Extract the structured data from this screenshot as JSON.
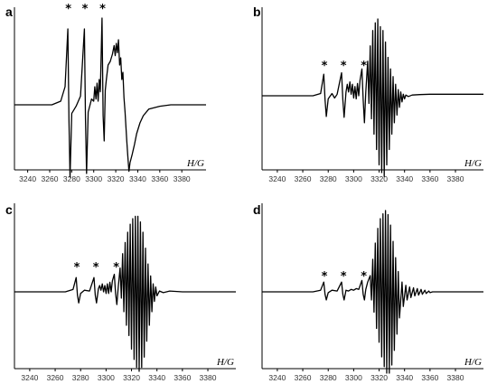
{
  "chart_data": [
    {
      "type": "line",
      "panel_label": "a",
      "xlabel": "H/G",
      "xticks": [
        3240,
        3260,
        3280,
        3300,
        3320,
        3340,
        3360,
        3380
      ],
      "xlim": [
        3228,
        3402
      ],
      "grid": false,
      "markers": [
        {
          "text": "*",
          "x": 3277
        },
        {
          "text": "*",
          "x": 3292
        },
        {
          "text": "*",
          "x": 3308
        }
      ],
      "series": [
        {
          "x": [
            3228,
            3262,
            3270,
            3274,
            3276.5,
            3277.5,
            3278.5,
            3280,
            3284,
            3288,
            3291.5,
            3292.5,
            3293.5,
            3295,
            3298,
            3300,
            3301,
            3302,
            3303,
            3304,
            3305,
            3306,
            3307.5,
            3308.5,
            3309.5,
            3310.5,
            3311.5,
            3313,
            3315,
            3317,
            3318.5,
            3319.5,
            3320.5,
            3321.5,
            3322.5,
            3323.5,
            3324.5,
            3325.5,
            3326.5,
            3327.5,
            3328.5,
            3330,
            3331,
            3332,
            3333,
            3335,
            3337,
            3339,
            3342,
            3345,
            3350,
            3360,
            3370,
            3380,
            3402
          ],
          "y": [
            0,
            0,
            0.05,
            0.25,
            1.05,
            -0.2,
            -1.0,
            -0.12,
            -0.02,
            0.12,
            1.05,
            -0.2,
            -0.95,
            -0.1,
            0.08,
            0.05,
            0.25,
            0.08,
            0.3,
            0.05,
            0.35,
            0.18,
            1.2,
            -0.15,
            -0.5,
            0.2,
            0.35,
            0.55,
            0.6,
            0.7,
            0.82,
            0.68,
            0.85,
            0.72,
            0.9,
            0.55,
            0.65,
            0.35,
            0.45,
            0.1,
            -0.1,
            -0.5,
            -0.72,
            -0.92,
            -0.8,
            -0.68,
            -0.55,
            -0.4,
            -0.25,
            -0.15,
            -0.06,
            -0.02,
            0,
            0,
            0
          ]
        }
      ]
    },
    {
      "type": "line",
      "panel_label": "b",
      "xlabel": "H/G",
      "xticks": [
        3240,
        3260,
        3280,
        3300,
        3320,
        3340,
        3360,
        3380
      ],
      "xlim": [
        3228,
        3402
      ],
      "grid": false,
      "markers": [
        {
          "text": "*",
          "x": 3277
        },
        {
          "text": "*",
          "x": 3292
        },
        {
          "text": "*",
          "x": 3308
        }
      ],
      "series": [
        {
          "x": [
            3228,
            3268,
            3274,
            3276.5,
            3277.5,
            3278.5,
            3280,
            3283,
            3285,
            3287,
            3290.5,
            3291.5,
            3292.5,
            3294,
            3295,
            3296,
            3297,
            3298,
            3299,
            3300,
            3301,
            3302,
            3303,
            3304,
            3305,
            3306.5,
            3307.5,
            3308.5,
            3309.5,
            3311,
            3312,
            3313,
            3314,
            3315,
            3316,
            3317,
            3318,
            3319,
            3320,
            3321,
            3322,
            3323,
            3324,
            3325,
            3326,
            3327,
            3328,
            3329,
            3330,
            3331,
            3332,
            3333,
            3334,
            3335,
            3336,
            3337,
            3338,
            3339,
            3340,
            3341,
            3343,
            3346,
            3352,
            3360,
            3380,
            3402
          ],
          "y": [
            0,
            0,
            0.03,
            0.28,
            -0.05,
            -0.27,
            -0.04,
            0.03,
            -0.03,
            0.02,
            0.3,
            -0.05,
            -0.28,
            0.05,
            0.15,
            0.05,
            0.18,
            0.02,
            0.15,
            -0.03,
            0.12,
            -0.04,
            0.16,
            0.0,
            0.2,
            0.35,
            -0.05,
            -0.35,
            0.05,
            0.45,
            -0.1,
            0.65,
            -0.3,
            0.85,
            -0.5,
            0.95,
            -0.7,
            1.0,
            -0.9,
            0.9,
            -1.0,
            0.85,
            -1.05,
            0.7,
            -0.9,
            0.5,
            -0.7,
            0.35,
            -0.5,
            0.25,
            -0.35,
            0.15,
            -0.25,
            0.08,
            -0.15,
            0.05,
            -0.08,
            0.02,
            -0.04,
            0.01,
            -0.01,
            0.01,
            0.015,
            0.02,
            0.02,
            0.02
          ]
        }
      ]
    },
    {
      "type": "line",
      "panel_label": "c",
      "xlabel": "H/G",
      "xticks": [
        3240,
        3260,
        3280,
        3300,
        3320,
        3340,
        3360,
        3380
      ],
      "xlim": [
        3228,
        3402
      ],
      "grid": false,
      "markers": [
        {
          "text": "*",
          "x": 3277
        },
        {
          "text": "*",
          "x": 3292
        },
        {
          "text": "*",
          "x": 3308
        }
      ],
      "series": [
        {
          "x": [
            3228,
            3268,
            3274,
            3276.5,
            3277.5,
            3278.5,
            3280,
            3283,
            3287,
            3290.5,
            3291.5,
            3292.5,
            3294,
            3295,
            3296,
            3297,
            3298,
            3299,
            3300,
            3301,
            3302,
            3303,
            3304,
            3305,
            3306.5,
            3307.5,
            3308.5,
            3309.5,
            3311,
            3312,
            3313,
            3314,
            3315,
            3316,
            3317,
            3318,
            3319,
            3320,
            3321,
            3322,
            3323,
            3324,
            3325,
            3326,
            3327,
            3328,
            3329,
            3330,
            3331,
            3332,
            3333,
            3334,
            3335,
            3336,
            3337,
            3338,
            3339,
            3340,
            3342,
            3345,
            3350,
            3360,
            3380,
            3402
          ],
          "y": [
            0,
            0,
            0.03,
            0.18,
            -0.04,
            -0.14,
            -0.02,
            0.02,
            0.01,
            0.18,
            -0.04,
            -0.14,
            0.04,
            0.08,
            0.02,
            0.1,
            0.0,
            0.08,
            -0.02,
            0.1,
            -0.02,
            0.12,
            0.0,
            0.14,
            0.22,
            -0.02,
            -0.16,
            0.05,
            0.3,
            -0.08,
            0.48,
            -0.25,
            0.62,
            -0.42,
            0.75,
            -0.55,
            0.85,
            -0.72,
            0.92,
            -0.85,
            0.95,
            -0.95,
            0.95,
            -1.0,
            0.88,
            -0.95,
            0.75,
            -0.82,
            0.55,
            -0.62,
            0.35,
            -0.42,
            0.2,
            -0.25,
            0.1,
            -0.12,
            0.06,
            -0.05,
            0.01,
            -0.01,
            0.01,
            0.0,
            0.0,
            0.0
          ]
        }
      ]
    },
    {
      "type": "line",
      "panel_label": "d",
      "xlabel": "H/G",
      "xticks": [
        3240,
        3260,
        3280,
        3300,
        3320,
        3340,
        3360,
        3380
      ],
      "xlim": [
        3228,
        3402
      ],
      "grid": false,
      "markers": [
        {
          "text": "*",
          "x": 3277
        },
        {
          "text": "*",
          "x": 3292
        },
        {
          "text": "*",
          "x": 3308
        }
      ],
      "series": [
        {
          "x": [
            3228,
            3268,
            3274,
            3276.5,
            3277.5,
            3278.5,
            3280,
            3283,
            3287,
            3290.5,
            3291.5,
            3292.5,
            3294,
            3296,
            3298,
            3300,
            3302,
            3304,
            3306.5,
            3307.5,
            3308.5,
            3309.5,
            3311,
            3313,
            3314,
            3315,
            3316,
            3317,
            3318,
            3319,
            3320,
            3321,
            3322,
            3323,
            3324,
            3325,
            3326,
            3327,
            3328,
            3329,
            3330,
            3331,
            3332,
            3333,
            3334,
            3335,
            3336,
            3338,
            3339,
            3341,
            3342,
            3344,
            3345,
            3347,
            3348,
            3350,
            3351,
            3353,
            3354,
            3356,
            3357,
            3359,
            3360,
            3362,
            3365,
            3370,
            3380,
            3402
          ],
          "y": [
            0,
            0,
            0.02,
            0.12,
            -0.03,
            -0.1,
            -0.01,
            0.02,
            0.01,
            0.12,
            -0.03,
            -0.1,
            0.02,
            0.01,
            0.03,
            0.02,
            0.04,
            0.03,
            0.14,
            -0.03,
            -0.1,
            0.03,
            0.12,
            0.2,
            -0.1,
            0.4,
            -0.25,
            0.6,
            -0.45,
            0.78,
            -0.62,
            0.9,
            -0.8,
            0.96,
            -0.92,
            1.0,
            -1.0,
            0.95,
            -1.0,
            0.82,
            -0.9,
            0.62,
            -0.72,
            0.42,
            -0.52,
            0.25,
            -0.32,
            0.12,
            -0.18,
            0.08,
            -0.1,
            0.06,
            -0.07,
            0.05,
            -0.05,
            0.04,
            -0.04,
            0.03,
            -0.03,
            0.02,
            -0.02,
            0.01,
            -0.01,
            0.0,
            0.0,
            0.0,
            0.0,
            0.0
          ]
        }
      ]
    }
  ]
}
